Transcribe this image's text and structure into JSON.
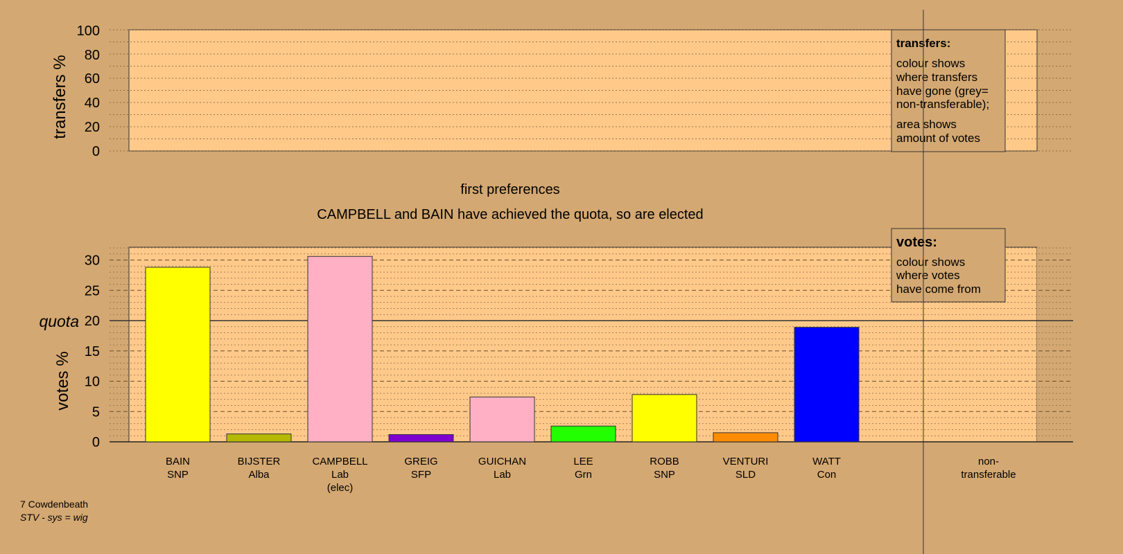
{
  "top_panel": {
    "ylabel": "transfers %",
    "ticks": [
      "0",
      "20",
      "40",
      "60",
      "80",
      "100"
    ],
    "legend": {
      "title": "transfers:",
      "lines1": [
        "colour shows",
        "where transfers",
        "have gone (grey=",
        "non-transferable);"
      ],
      "lines2": [
        "area shows",
        "amount of votes"
      ]
    }
  },
  "headings": {
    "stage": "first preferences",
    "message": "CAMPBELL and BAIN have achieved the quota, so are elected"
  },
  "bottom_panel": {
    "ylabel": "votes %",
    "quota_label": "quota",
    "legend": {
      "title": "votes:",
      "lines": [
        "colour shows",
        "where votes",
        "have come from"
      ]
    }
  },
  "footer": {
    "ward": "7 Cowdenbeath",
    "system": "STV - sys = wig"
  },
  "colors": {
    "background": "#D4A872",
    "plot_area": "#FFC98A",
    "SNP": "#FFFF00",
    "Alba": "#B5BA00",
    "Lab": "#FFB0C4",
    "SFP": "#8000D0",
    "Grn": "#22FF00",
    "SLD": "#FF8C00",
    "Con": "#0000FF"
  },
  "chart_data": {
    "type": "bar",
    "ylabel": "votes %",
    "ylim": [
      0,
      32
    ],
    "quota": 20,
    "yticks": [
      0,
      5,
      10,
      15,
      20,
      25,
      30
    ],
    "categories": [
      {
        "name": "BAIN",
        "party": "SNP",
        "note": "",
        "value": 28.8,
        "color": "#FFFF00"
      },
      {
        "name": "BIJSTER",
        "party": "Alba",
        "note": "",
        "value": 1.3,
        "color": "#B5BA00"
      },
      {
        "name": "CAMPBELL",
        "party": "Lab",
        "note": "(elec)",
        "value": 30.6,
        "color": "#FFB0C4"
      },
      {
        "name": "GREIG",
        "party": "SFP",
        "note": "",
        "value": 1.2,
        "color": "#8000D0"
      },
      {
        "name": "GUICHAN",
        "party": "Lab",
        "note": "",
        "value": 7.4,
        "color": "#FFB0C4"
      },
      {
        "name": "LEE",
        "party": "Grn",
        "note": "",
        "value": 2.6,
        "color": "#22FF00"
      },
      {
        "name": "ROBB",
        "party": "SNP",
        "note": "",
        "value": 7.8,
        "color": "#FFFF00"
      },
      {
        "name": "VENTURI",
        "party": "SLD",
        "note": "",
        "value": 1.5,
        "color": "#FF8C00"
      },
      {
        "name": "WATT",
        "party": "Con",
        "note": "",
        "value": 18.9,
        "color": "#0000FF"
      }
    ],
    "extra_category": {
      "line1": "non-",
      "line2": "transferable"
    }
  }
}
